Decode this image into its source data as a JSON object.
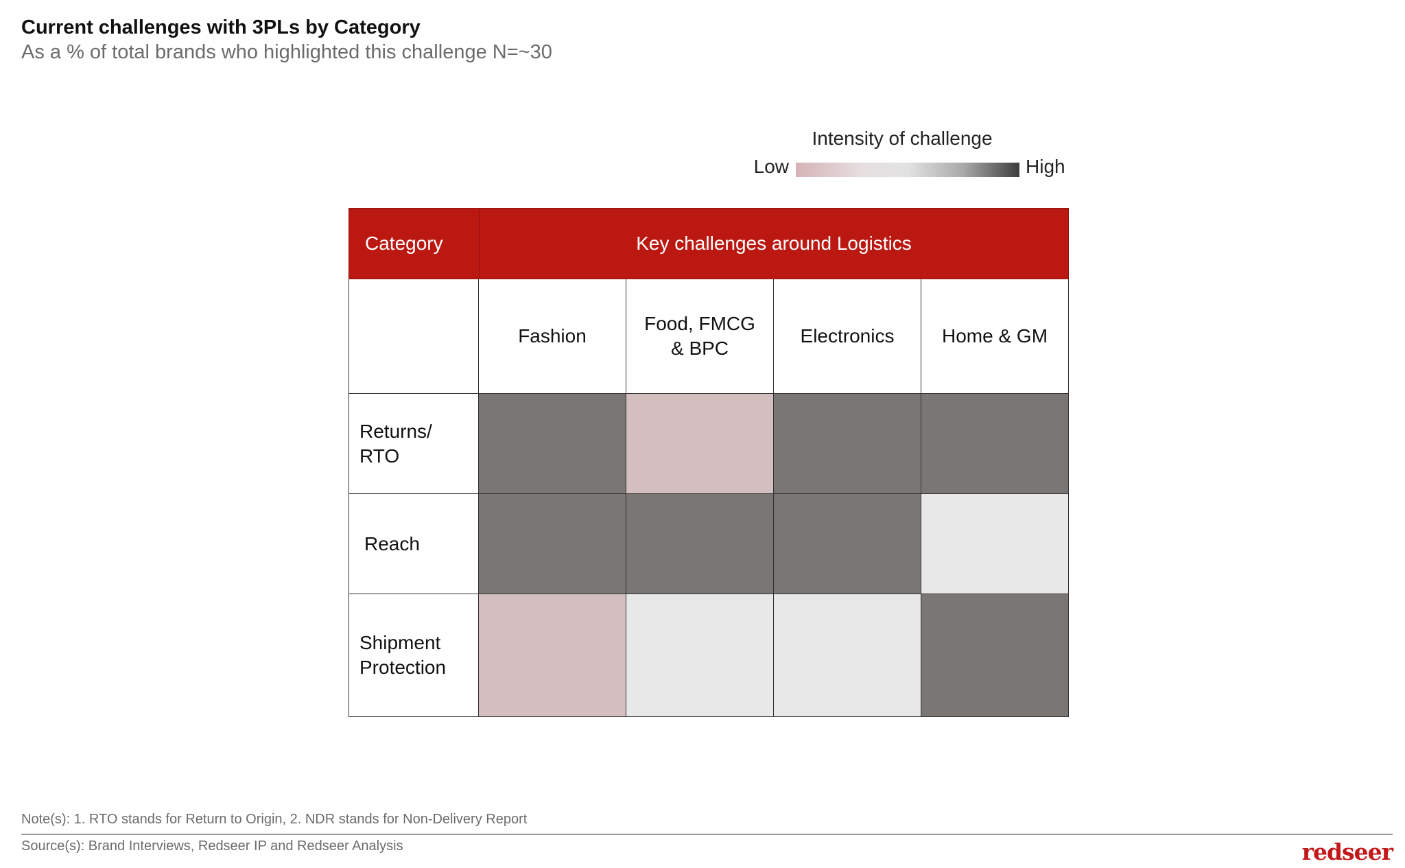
{
  "title": "Current challenges with 3PLs by Category",
  "subtitle": "As a % of total brands who highlighted this challenge N=~30",
  "legend": {
    "title": "Intensity of challenge",
    "low_label": "Low",
    "high_label": "High",
    "colors": {
      "low": "#d3bfc0",
      "mid": "#e8e8e8",
      "high": "#7a7673"
    }
  },
  "header": {
    "category_label": "Category",
    "challenges_label": "Key challenges around Logistics",
    "color": "#bc1812"
  },
  "chart_data": {
    "type": "heatmap",
    "title": "Current challenges with 3PLs by Category",
    "subtitle": "As a % of total brands who highlighted this challenge N=~30",
    "columns": [
      "Fashion",
      "Food, FMCG & BPC",
      "Electronics",
      "Home & GM"
    ],
    "rows": [
      {
        "label": "Returns/ RTO",
        "intensity": [
          "high",
          "low",
          "high",
          "high"
        ]
      },
      {
        "label": "Reach",
        "intensity": [
          "high",
          "high",
          "high",
          "mid"
        ]
      },
      {
        "label": "Shipment Protection",
        "intensity": [
          "low",
          "mid",
          "mid",
          "high"
        ]
      }
    ],
    "scale": [
      "low",
      "mid",
      "high"
    ],
    "legend_title": "Intensity of challenge",
    "legend_placement": "top-right"
  },
  "footer": {
    "note": "Note(s): 1. RTO stands for Return to Origin, 2. NDR stands for Non-Delivery Report",
    "source": "Source(s): Brand Interviews, Redseer IP and Redseer Analysis",
    "logo": "redseer"
  }
}
